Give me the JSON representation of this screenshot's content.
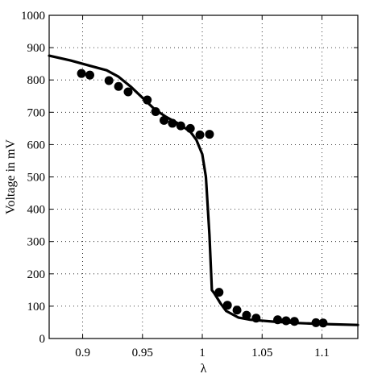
{
  "chart_data": {
    "type": "line",
    "xlabel": "λ",
    "ylabel": "Voltage in mV",
    "xlim": [
      0.872,
      1.13
    ],
    "ylim": [
      0,
      1000
    ],
    "grid": true,
    "x_ticks": [
      0.9,
      0.95,
      1,
      1.05,
      1.1
    ],
    "x_tick_labels": [
      "0.9",
      "0.95",
      "1",
      "1.05",
      "1.1"
    ],
    "y_ticks": [
      0,
      100,
      200,
      300,
      400,
      500,
      600,
      700,
      800,
      900,
      1000
    ],
    "y_tick_labels": [
      "0",
      "100",
      "200",
      "300",
      "400",
      "500",
      "600",
      "700",
      "800",
      "900",
      "1000"
    ],
    "series": [
      {
        "style": "line",
        "color": "#000000",
        "x": [
          0.872,
          0.89,
          0.905,
          0.92,
          0.93,
          0.94,
          0.95,
          0.96,
          0.97,
          0.98,
          0.99,
          0.995,
          1.0,
          1.003,
          1.006,
          1.008,
          1.01,
          1.015,
          1.02,
          1.03,
          1.04,
          1.06,
          1.08,
          1.1,
          1.13
        ],
        "y": [
          875,
          860,
          845,
          830,
          810,
          780,
          745,
          710,
          685,
          665,
          640,
          615,
          570,
          500,
          320,
          150,
          140,
          110,
          85,
          65,
          58,
          52,
          48,
          45,
          42
        ]
      },
      {
        "style": "scatter",
        "color": "#000000",
        "x": [
          0.899,
          0.906,
          0.922,
          0.93,
          0.938,
          0.954,
          0.961,
          0.968,
          0.975,
          0.982,
          0.99,
          0.998,
          1.006,
          1.014,
          1.021,
          1.029,
          1.037,
          1.045,
          1.063,
          1.07,
          1.077,
          1.095,
          1.101
        ],
        "y": [
          820,
          815,
          798,
          780,
          763,
          738,
          702,
          675,
          666,
          658,
          650,
          630,
          632,
          143,
          103,
          88,
          72,
          63,
          58,
          55,
          53,
          49,
          48
        ]
      }
    ]
  }
}
